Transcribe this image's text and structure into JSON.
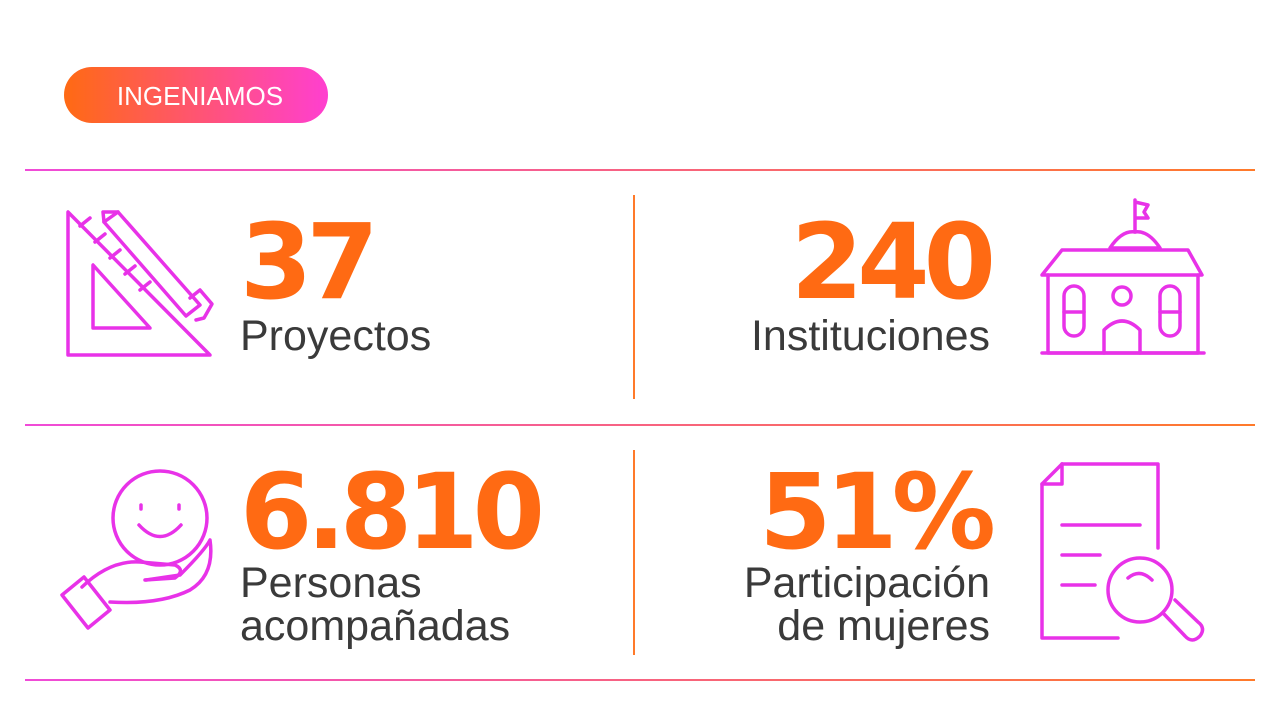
{
  "header": {
    "badge": "INGENIAMOS"
  },
  "stats": [
    {
      "value": "37",
      "label_lines": [
        "Proyectos"
      ]
    },
    {
      "value": "240",
      "label_lines": [
        "Instituciones"
      ]
    },
    {
      "value": "6.810",
      "label_lines": [
        "Personas",
        "acompañadas"
      ]
    },
    {
      "value": "51%",
      "label_lines": [
        "Participación",
        "de mujeres"
      ]
    }
  ]
}
